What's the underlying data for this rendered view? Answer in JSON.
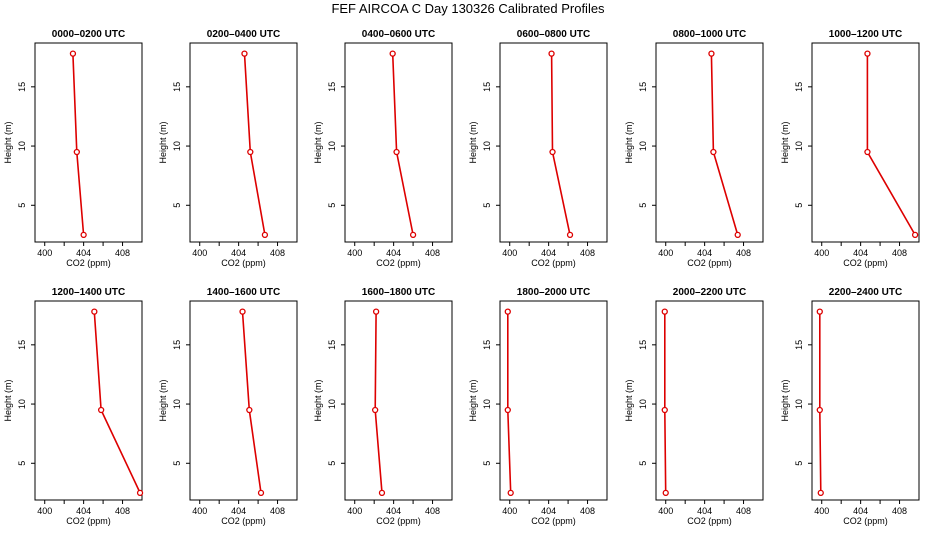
{
  "page": {
    "title": "FEF AIRCOA C  Day 130326  Calibrated Profiles"
  },
  "colors": {
    "profile": "#dd0000",
    "axes": "#000000"
  },
  "chart_data": {
    "type": "line",
    "orientation": "profile",
    "xlabel": "CO2 (ppm)",
    "ylabel": "Height (m)",
    "xlim": [
      399,
      410
    ],
    "ylim": [
      1.9,
      18.7
    ],
    "xticks": [
      400,
      404,
      408
    ],
    "yticks": [
      5,
      10,
      15
    ],
    "heights": [
      17.8,
      9.5,
      2.5
    ],
    "panels": [
      {
        "title": "0000–0200 UTC",
        "co2": [
          402.9,
          403.3,
          404.0
        ]
      },
      {
        "title": "0200–0400 UTC",
        "co2": [
          404.6,
          405.2,
          406.7
        ]
      },
      {
        "title": "0400–0600 UTC",
        "co2": [
          403.9,
          404.3,
          406.0
        ]
      },
      {
        "title": "0600–0800 UTC",
        "co2": [
          404.3,
          404.4,
          406.2
        ]
      },
      {
        "title": "0800–1000 UTC",
        "co2": [
          404.7,
          404.9,
          407.4
        ]
      },
      {
        "title": "1000–1200 UTC",
        "co2": [
          404.7,
          404.7,
          409.6
        ]
      },
      {
        "title": "1200–1400 UTC",
        "co2": [
          405.1,
          405.8,
          409.8
        ]
      },
      {
        "title": "1400–1600 UTC",
        "co2": [
          404.4,
          405.1,
          406.3
        ]
      },
      {
        "title": "1600–1800 UTC",
        "co2": [
          402.2,
          402.1,
          402.8
        ]
      },
      {
        "title": "1800–2000 UTC",
        "co2": [
          399.8,
          399.8,
          400.1
        ]
      },
      {
        "title": "2000–2200 UTC",
        "co2": [
          399.9,
          399.9,
          400.0
        ]
      },
      {
        "title": "2200–2400 UTC",
        "co2": [
          399.8,
          399.8,
          399.9
        ]
      }
    ]
  }
}
